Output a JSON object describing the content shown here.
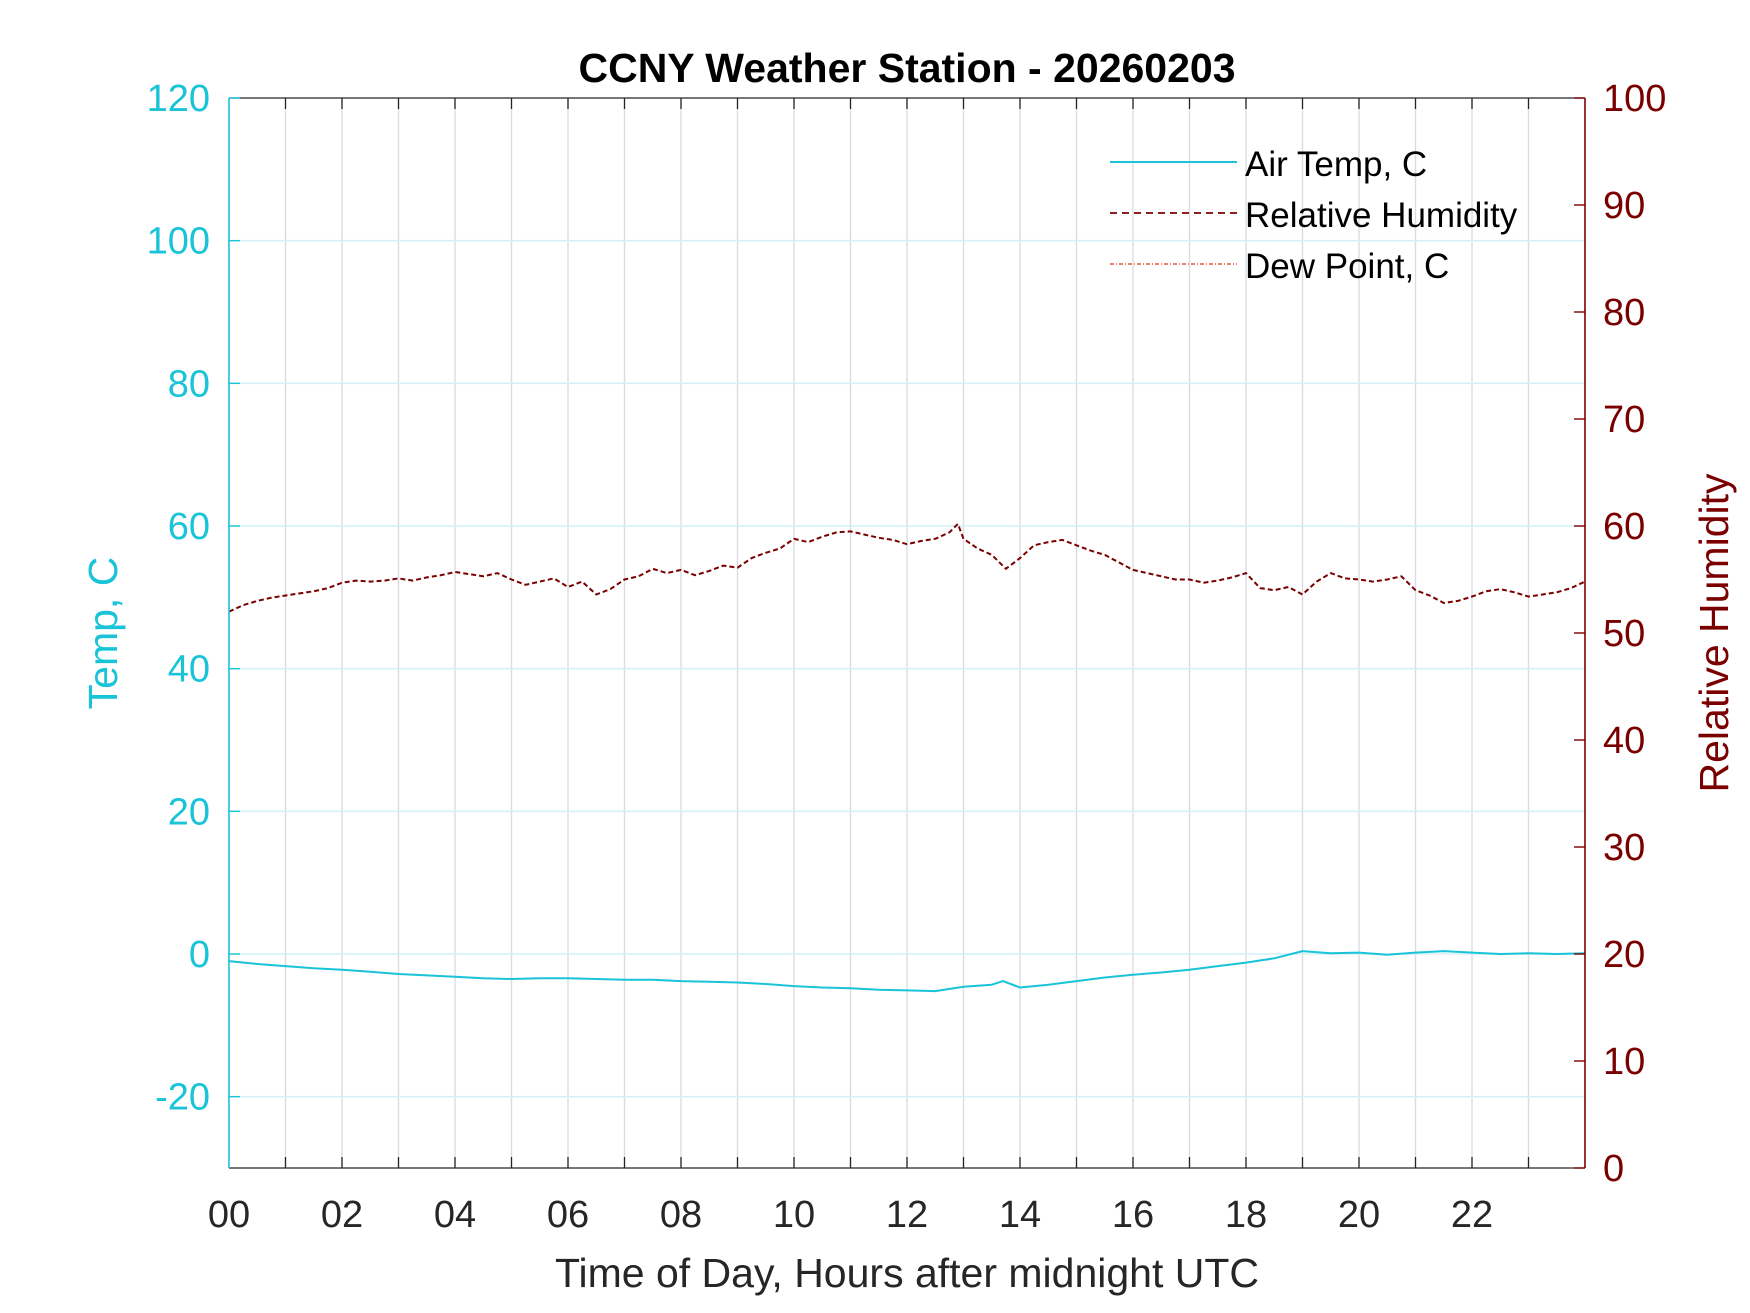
{
  "chart_data": {
    "type": "line",
    "title": "CCNY Weather Station - 20260203",
    "xlabel": "Time of Day, Hours after midnight UTC",
    "ylabel_left": "Temp, C",
    "ylabel_right": "Relative Humidity",
    "xlim": [
      0,
      24
    ],
    "ylim_left": [
      -30,
      120
    ],
    "ylim_right": [
      0,
      100
    ],
    "x_ticks": [
      0,
      2,
      4,
      6,
      8,
      10,
      12,
      14,
      16,
      18,
      20,
      22
    ],
    "x_tick_labels": [
      "00",
      "02",
      "04",
      "06",
      "08",
      "10",
      "12",
      "14",
      "16",
      "18",
      "20",
      "22"
    ],
    "y_left_ticks": [
      -20,
      0,
      20,
      40,
      60,
      80,
      100,
      120
    ],
    "y_left_tick_labels": [
      "-20",
      "0",
      "20",
      "40",
      "60",
      "80",
      "100",
      "120"
    ],
    "y_right_ticks": [
      0,
      10,
      20,
      30,
      40,
      50,
      60,
      70,
      80,
      90,
      100
    ],
    "y_right_tick_labels": [
      "0",
      "10",
      "20",
      "30",
      "40",
      "50",
      "60",
      "70",
      "80",
      "90",
      "100"
    ],
    "grid": true,
    "legend_position": "top-right",
    "colors": {
      "temp": "#19c3d8",
      "humidity": "#7a0000",
      "dewpoint": "#e8553a",
      "left_axis": "#19c3d8",
      "right_axis": "#7a0000",
      "grid_h": "#d3f1f6",
      "grid_v": "#d9dde3"
    },
    "series": [
      {
        "name": "Air Temp, C",
        "axis": "left",
        "style": "solid",
        "x": [
          0,
          0.5,
          1,
          1.5,
          2,
          2.5,
          3,
          3.5,
          4,
          4.5,
          5,
          5.5,
          6,
          6.5,
          7,
          7.5,
          8,
          8.5,
          9,
          9.5,
          10,
          10.5,
          11,
          11.5,
          12,
          12.5,
          13,
          13.5,
          13.7,
          14,
          14.5,
          15,
          15.5,
          16,
          16.5,
          17,
          17.5,
          18,
          18.5,
          19,
          19.5,
          20,
          20.5,
          21,
          21.5,
          22,
          22.5,
          23,
          23.5,
          24
        ],
        "y": [
          -1.0,
          -1.4,
          -1.7,
          -2.0,
          -2.2,
          -2.5,
          -2.8,
          -3.0,
          -3.2,
          -3.4,
          -3.5,
          -3.4,
          -3.4,
          -3.5,
          -3.6,
          -3.6,
          -3.8,
          -3.9,
          -4.0,
          -4.2,
          -4.5,
          -4.7,
          -4.8,
          -5.0,
          -5.1,
          -5.2,
          -4.6,
          -4.3,
          -3.8,
          -4.7,
          -4.3,
          -3.8,
          -3.3,
          -2.9,
          -2.6,
          -2.2,
          -1.7,
          -1.2,
          -0.6,
          0.4,
          0.1,
          0.2,
          -0.1,
          0.2,
          0.4,
          0.2,
          0.0,
          0.1,
          0.0,
          0.1
        ]
      },
      {
        "name": "Relative Humidity",
        "axis": "right",
        "style": "dashed",
        "x": [
          0,
          0.25,
          0.5,
          0.75,
          1,
          1.25,
          1.5,
          1.75,
          2,
          2.25,
          2.5,
          2.75,
          3,
          3.25,
          3.5,
          3.75,
          4,
          4.25,
          4.5,
          4.75,
          5,
          5.25,
          5.5,
          5.75,
          6,
          6.25,
          6.5,
          6.75,
          7,
          7.25,
          7.5,
          7.75,
          8,
          8.25,
          8.5,
          8.75,
          9,
          9.25,
          9.5,
          9.75,
          10,
          10.25,
          10.5,
          10.75,
          11,
          11.25,
          11.5,
          11.75,
          12,
          12.25,
          12.5,
          12.75,
          12.9,
          13,
          13.25,
          13.5,
          13.75,
          14,
          14.25,
          14.5,
          14.75,
          15,
          15.25,
          15.5,
          15.75,
          16,
          16.25,
          16.5,
          16.75,
          17,
          17.25,
          17.5,
          17.75,
          18,
          18.25,
          18.5,
          18.75,
          19,
          19.25,
          19.5,
          19.75,
          20,
          20.25,
          20.5,
          20.75,
          21,
          21.25,
          21.5,
          21.75,
          22,
          22.25,
          22.5,
          22.75,
          23,
          23.25,
          23.5,
          23.75,
          24
        ],
        "y": [
          52.0,
          52.6,
          53.0,
          53.3,
          53.5,
          53.7,
          53.9,
          54.2,
          54.7,
          54.9,
          54.8,
          54.9,
          55.1,
          54.9,
          55.2,
          55.4,
          55.7,
          55.5,
          55.3,
          55.6,
          55.0,
          54.5,
          54.8,
          55.1,
          54.3,
          54.8,
          53.6,
          54.1,
          55.0,
          55.3,
          56.0,
          55.6,
          55.9,
          55.4,
          55.8,
          56.3,
          56.1,
          57.0,
          57.5,
          57.9,
          58.8,
          58.5,
          59.0,
          59.4,
          59.5,
          59.2,
          58.9,
          58.7,
          58.3,
          58.6,
          58.8,
          59.4,
          60.2,
          58.8,
          57.9,
          57.3,
          56.0,
          57.0,
          58.2,
          58.5,
          58.7,
          58.2,
          57.7,
          57.3,
          56.6,
          55.9,
          55.6,
          55.3,
          55.0,
          55.0,
          54.7,
          54.9,
          55.2,
          55.6,
          54.2,
          54.0,
          54.3,
          53.6,
          54.8,
          55.6,
          55.1,
          55.0,
          54.8,
          55.0,
          55.3,
          54.0,
          53.5,
          52.8,
          53.0,
          53.4,
          53.9,
          54.1,
          53.8,
          53.4,
          53.6,
          53.8,
          54.2,
          54.8
        ]
      },
      {
        "name": "Dew Point, C",
        "axis": "left",
        "style": "dash-dot",
        "x": [],
        "y": []
      }
    ]
  }
}
